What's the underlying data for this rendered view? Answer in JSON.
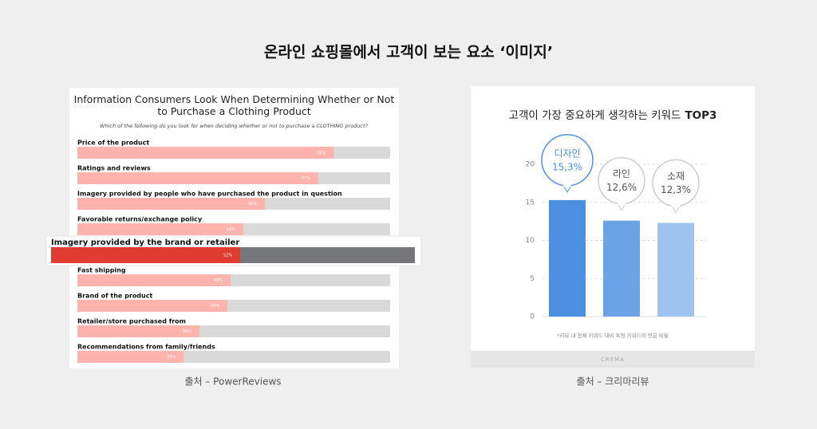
{
  "header": {
    "title": "온라인 쇼핑몰에서 고객이 보는 요소 ‘이미지’"
  },
  "captions": [
    "출처 – PowerReviews",
    "출처 – 크리마리뷰"
  ],
  "chart_data": [
    {
      "type": "hbar",
      "title": "Information Consumers Look When Determining Whether or Not to Purchase a Clothing Product",
      "subtitle": "Which of the following do you look for when deciding whether or not to purchase a CLOTHING product?",
      "categories": [
        "Price of the product",
        "Ratings and reviews",
        "Imagery provided by people who have purchased the product in question",
        "Favorable returns/exchange policy",
        "Imagery provided by the brand or retailer",
        "Fast shipping",
        "Brand of the product",
        "Retailer/store purchased from",
        "Recommendations from family/friends"
      ],
      "values": [
        82,
        77,
        60,
        53,
        52,
        49,
        48,
        39,
        34
      ],
      "value_labels": [
        "82%",
        "77%",
        "60%",
        "53%",
        "52%",
        "49%",
        "48%",
        "39%",
        "34%"
      ],
      "xlim": [
        0,
        100
      ],
      "color": "#ffb3ad",
      "track_color": "#d9d9d9",
      "highlight": {
        "index": 4,
        "color": "#e03c31",
        "track_color": "#76777b"
      }
    },
    {
      "type": "bar",
      "title": "고객이 가장 중요하게 생각하는 키워드",
      "title_emphasis": "TOP3",
      "categories": [
        "디자인",
        "라인",
        "소재"
      ],
      "values": [
        15.3,
        12.6,
        12.3
      ],
      "value_labels": [
        "15,3%",
        "12,6%",
        "12,3%"
      ],
      "colors": [
        "#4a8fe0",
        "#6aa3e6",
        "#9ec3ef"
      ],
      "ylim": [
        0,
        20
      ],
      "yticks": [
        0,
        5,
        10,
        15,
        20
      ],
      "grid": true,
      "footnote": "*리뷰 내 전체 키워드 대비 특정 키워드의 언급 비율",
      "brand": "CREMA"
    }
  ]
}
